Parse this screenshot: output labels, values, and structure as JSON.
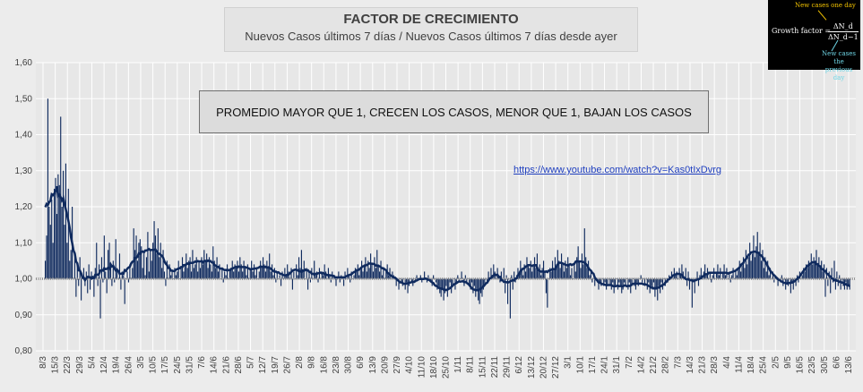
{
  "title": "FACTOR DE CRECIMIENTO",
  "subtitle": "Nuevos Casos últimos 7 días / Nuevos Casos últimos 7 días desde ayer",
  "note": "PROMEDIO MAYOR QUE 1, CRECEN LOS CASOS, MENOR QUE 1, BAJAN LOS CASOS",
  "link": "https://www.youtube.com/watch?v=Kas0tIxDvrg",
  "formula": {
    "top_label": "New cases one day",
    "lhs": "Growth factor =",
    "numerator": "ΔN_d",
    "denominator": "ΔN_d−1",
    "bottom_label_1": "New cases the",
    "bottom_label_2": "previous day"
  },
  "colors": {
    "bars": "#0f2a5e",
    "trend": "#0f2a5e",
    "baseline": "#7f7f7f",
    "grid": "#ffffff"
  },
  "chart_data": {
    "type": "bar",
    "title": "FACTOR DE CRECIMIENTO",
    "subtitle": "Nuevos Casos últimos 7 días / Nuevos Casos últimos 7 días desde ayer",
    "ylim": [
      0.8,
      1.6
    ],
    "yticks": [
      "0,80",
      "0,90",
      "1,00",
      "1,10",
      "1,20",
      "1,30",
      "1,40",
      "1,50",
      "1,60"
    ],
    "baseline": 1.0,
    "grid": true,
    "xticks": [
      "8/3",
      "15/3",
      "22/3",
      "29/3",
      "5/4",
      "12/4",
      "19/4",
      "26/4",
      "3/5",
      "10/5",
      "17/5",
      "24/5",
      "31/5",
      "7/6",
      "14/6",
      "21/6",
      "28/6",
      "5/7",
      "12/7",
      "19/7",
      "26/7",
      "2/8",
      "9/8",
      "16/8",
      "23/8",
      "30/8",
      "6/9",
      "13/9",
      "20/9",
      "27/9",
      "4/10",
      "11/10",
      "18/10",
      "25/10",
      "1/11",
      "8/11",
      "15/11",
      "22/11",
      "29/11",
      "6/12",
      "13/12",
      "20/12",
      "27/12",
      "3/1",
      "10/1",
      "17/1",
      "24/1",
      "31/1",
      "7/2",
      "14/2",
      "21/2",
      "28/2",
      "7/3",
      "14/3",
      "21/3",
      "28/3",
      "4/4",
      "11/4",
      "18/4",
      "25/4",
      "2/5",
      "9/5",
      "16/5",
      "23/5",
      "30/5",
      "6/6",
      "13/6"
    ],
    "values": [
      1.05,
      1.12,
      1.5,
      1.2,
      1.15,
      1.22,
      1.1,
      1.25,
      1.28,
      1.18,
      1.29,
      1.26,
      1.45,
      1.2,
      1.3,
      1.15,
      1.32,
      1.1,
      1.25,
      1.05,
      1.08,
      1.2,
      1.0,
      1.06,
      0.95,
      1.04,
      0.98,
      1.06,
      0.94,
      1.0,
      1.03,
      0.98,
      1.02,
      0.96,
      1.04,
      0.97,
      1.02,
      1.0,
      0.95,
      1.03,
      1.1,
      0.98,
      1.04,
      0.89,
      1.06,
      0.99,
      1.12,
      1.02,
      0.96,
      1.08,
      1.1,
      1.04,
      0.98,
      1.05,
      0.99,
      1.11,
      1.03,
      1.0,
      1.07,
      0.97,
      1.02,
      1.01,
      0.93,
      1.0,
      1.02,
      0.99,
      1.04,
      1.0,
      1.03,
      1.14,
      1.08,
      1.12,
      1.05,
      1.1,
      1.11,
      1.09,
      1.03,
      1.07,
      1.01,
      1.06,
      1.13,
      1.02,
      1.08,
      1.05,
      1.1,
      1.16,
      1.12,
      1.07,
      1.14,
      1.06,
      1.1,
      1.03,
      1.08,
      1.02,
      0.98,
      1.05,
      1.0,
      1.04,
      1.01,
      1.02,
      1.0,
      1.03,
      1.01,
      1.02,
      1.05,
      1.0,
      1.03,
      1.06,
      1.02,
      1.04,
      1.07,
      1.03,
      1.05,
      1.06,
      1.02,
      1.08,
      1.03,
      1.04,
      1.06,
      1.02,
      1.05,
      1.03,
      1.06,
      1.04,
      1.08,
      1.05,
      1.07,
      1.03,
      1.06,
      1.04,
      1.02,
      1.09,
      1.05,
      1.03,
      1.06,
      1.02,
      1.04,
      1.0,
      1.03,
      0.99,
      1.02,
      1.01,
      1.04,
      1.0,
      1.02,
      1.03,
      1.05,
      1.02,
      1.04,
      1.03,
      1.05,
      1.02,
      1.06,
      1.04,
      1.02,
      1.05,
      1.03,
      1.01,
      1.04,
      1.0,
      1.03,
      1.05,
      1.02,
      1.04,
      1.01,
      1.03,
      1.0,
      1.02,
      1.05,
      1.03,
      1.06,
      1.04,
      1.02,
      1.05,
      1.03,
      1.07,
      1.02,
      1.04,
      1.01,
      1.03,
      0.99,
      1.02,
      1.0,
      1.01,
      0.98,
      1.02,
      1.0,
      1.03,
      1.01,
      1.04,
      1.02,
      1.0,
      1.03,
      0.97,
      1.02,
      1.0,
      1.04,
      1.01,
      1.06,
      1.03,
      1.08,
      1.02,
      1.05,
      1.0,
      1.03,
      0.97,
      1.02,
      0.99,
      1.03,
      1.0,
      1.05,
      1.01,
      1.02,
      0.99,
      1.03,
      1.0,
      1.02,
      1.01,
      1.04,
      1.02,
      1.0,
      1.03,
      1.01,
      0.99,
      1.02,
      1.0,
      1.01,
      0.98,
      1.0,
      1.02,
      0.99,
      1.01,
      1.0,
      0.98,
      1.02,
      1.0,
      1.03,
      1.01,
      0.99,
      1.02,
      1.0,
      1.01,
      1.03,
      1.02,
      1.04,
      1.01,
      1.03,
      1.05,
      1.02,
      1.04,
      1.06,
      1.02,
      1.05,
      1.03,
      1.07,
      1.04,
      1.02,
      1.06,
      1.03,
      1.08,
      1.04,
      1.02,
      1.05,
      1.01,
      1.03,
      1.0,
      1.02,
      1.04,
      1.01,
      1.03,
      1.0,
      1.02,
      1.01,
      1.0,
      0.98,
      1.0,
      0.97,
      1.0,
      0.99,
      0.98,
      1.0,
      0.97,
      0.99,
      0.96,
      0.98,
      1.0,
      0.99,
      0.98,
      1.0,
      0.99,
      1.01,
      1.0,
      1.0,
      1.01,
      0.99,
      1.0,
      1.02,
      1.0,
      0.99,
      1.01,
      1.0,
      0.99,
      0.98,
      1.01,
      1.0,
      0.99,
      0.97,
      0.98,
      0.96,
      0.95,
      0.97,
      0.94,
      0.96,
      0.98,
      0.95,
      0.97,
      0.99,
      0.96,
      0.98,
      1.0,
      0.97,
      0.99,
      1.01,
      0.99,
      1.0,
      1.02,
      1.0,
      0.98,
      1.01,
      0.99,
      1.0,
      0.98,
      0.97,
      0.99,
      0.96,
      0.98,
      0.95,
      0.97,
      0.94,
      0.93,
      0.96,
      0.95,
      0.97,
      0.98,
      1.0,
      0.99,
      1.02,
      1.0,
      1.03,
      1.01,
      1.04,
      1.02,
      1.0,
      1.03,
      1.01,
      0.99,
      1.02,
      1.0,
      1.03,
      0.96,
      1.01,
      0.93,
      1.0,
      0.89,
      1.01,
      0.97,
      1.02,
      0.99,
      1.01,
      1.03,
      1.02,
      1.05,
      1.03,
      1.01,
      1.04,
      1.02,
      1.06,
      1.04,
      1.03,
      1.05,
      1.02,
      1.04,
      1.06,
      1.03,
      1.07,
      1.02,
      1.04,
      1.01,
      1.03,
      1.05,
      1.02,
      0.96,
      0.92,
      1.0,
      1.03,
      1.02,
      1.05,
      1.03,
      1.06,
      1.04,
      1.08,
      1.05,
      1.03,
      1.07,
      1.04,
      1.02,
      1.05,
      1.03,
      1.06,
      1.04,
      1.01,
      1.03,
      1.0,
      1.04,
      1.02,
      1.06,
      1.09,
      1.05,
      1.03,
      1.07,
      1.04,
      1.14,
      1.06,
      1.03,
      1.05,
      1.01,
      1.02,
      0.99,
      1.0,
      0.98,
      1.0,
      0.99,
      0.97,
      0.99,
      0.98,
      1.0,
      0.98,
      0.99,
      0.97,
      0.98,
      1.0,
      0.98,
      0.97,
      0.99,
      0.96,
      0.98,
      1.0,
      0.97,
      0.99,
      0.98,
      0.96,
      0.97,
      0.99,
      0.98,
      1.0,
      0.97,
      0.99,
      0.96,
      0.98,
      1.0,
      0.98,
      0.97,
      0.99,
      0.98,
      1.0,
      1.01,
      0.99,
      1.0,
      0.98,
      1.0,
      0.97,
      0.99,
      0.96,
      0.98,
      0.97,
      0.99,
      0.95,
      0.97,
      0.94,
      0.98,
      0.96,
      0.99,
      0.97,
      1.0,
      0.98,
      1.0,
      0.99,
      1.01,
      1.0,
      1.02,
      1.0,
      1.03,
      1.01,
      1.02,
      1.0,
      1.03,
      1.01,
      1.04,
      1.02,
      1.0,
      1.03,
      0.98,
      1.02,
      0.97,
      1.0,
      0.92,
      0.99,
      0.96,
      1.0,
      1.02,
      0.98,
      1.01,
      1.03,
      1.0,
      1.02,
      1.04,
      1.01,
      1.03,
      1.0,
      1.02,
      0.99,
      1.01,
      1.03,
      1.0,
      1.02,
      1.04,
      1.01,
      1.03,
      1.0,
      1.02,
      1.04,
      1.01,
      1.03,
      1.0,
      1.02,
      0.99,
      1.01,
      1.03,
      1.0,
      1.02,
      1.01,
      1.03,
      1.05,
      1.02,
      1.04,
      1.06,
      1.03,
      1.08,
      1.04,
      1.06,
      1.1,
      1.05,
      1.07,
      1.12,
      1.06,
      1.09,
      1.13,
      1.07,
      1.1,
      1.05,
      1.08,
      1.03,
      1.06,
      1.02,
      1.05,
      1.01,
      1.03,
      1.0,
      1.02,
      0.99,
      1.01,
      1.0,
      0.98,
      1.0,
      0.99,
      1.01,
      0.98,
      1.0,
      0.97,
      0.99,
      0.98,
      1.0,
      0.96,
      0.99,
      0.97,
      1.0,
      0.98,
      1.01,
      0.99,
      1.02,
      1.0,
      1.01,
      1.03,
      1.02,
      1.04,
      1.03,
      1.05,
      1.04,
      1.07,
      1.04,
      1.06,
      1.05,
      1.08,
      1.04,
      1.06,
      1.03,
      1.05,
      1.02,
      1.04,
      0.95,
      1.03,
      0.98,
      1.02,
      0.96,
      1.03,
      0.99,
      1.05,
      0.97,
      1.02,
      0.98,
      1.01,
      0.97,
      1.0,
      0.98,
      0.97,
      0.99,
      0.97,
      0.98,
      0.97
    ]
  }
}
